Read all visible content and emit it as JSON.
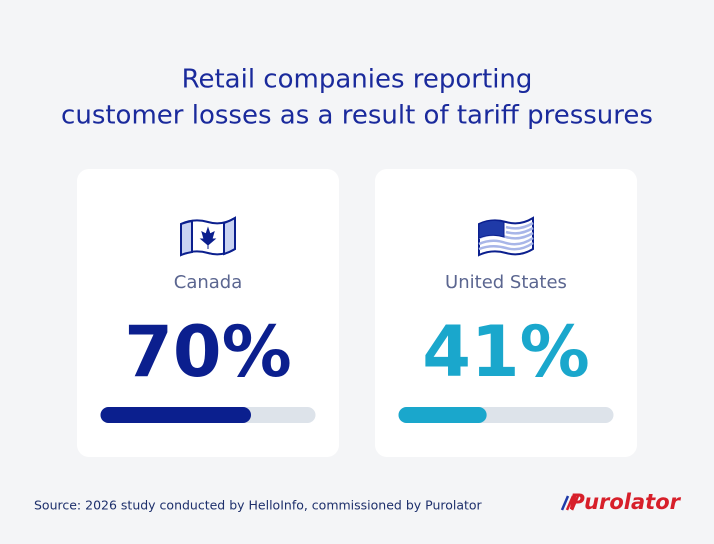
{
  "chart_data": {
    "type": "progress",
    "title": [
      "Retail companies reporting",
      "customer losses as a result of tariff pressures"
    ],
    "categories": [
      "Canada",
      "United States"
    ],
    "values": [
      70,
      41
    ],
    "value_labels": [
      "70%",
      "41%"
    ],
    "colors": [
      "#0b1f8e",
      "#1aa7cc"
    ],
    "ylim": [
      0,
      100
    ],
    "source": "Source: 2026 study conducted by HelloInfo, commissioned by Purolator",
    "brand": "Purolator"
  }
}
